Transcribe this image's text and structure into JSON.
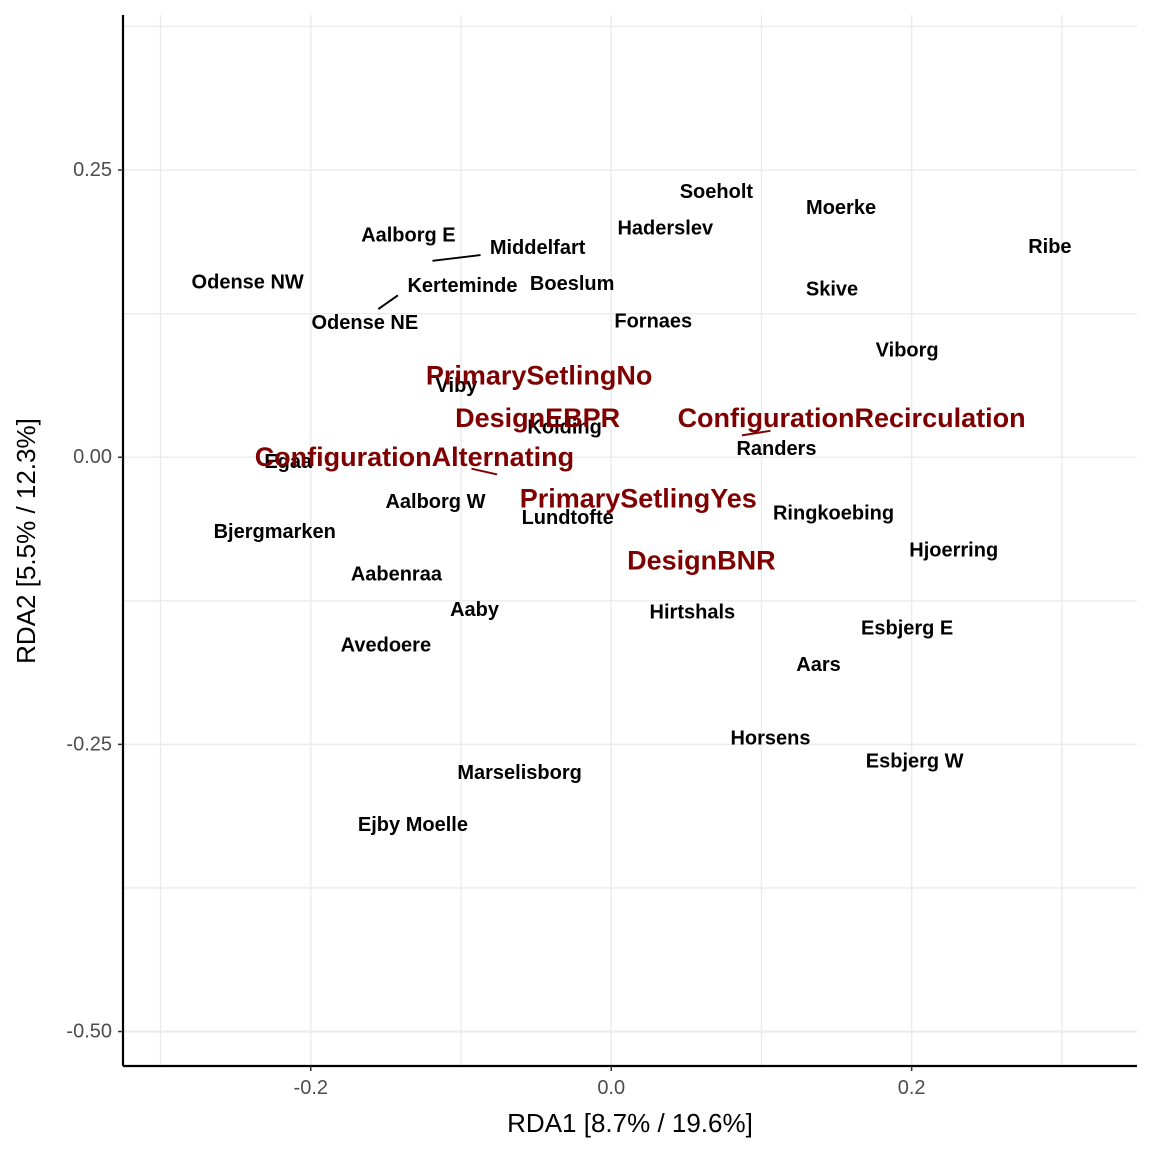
{
  "chart_data": {
    "type": "scatter",
    "xlabel": "RDA1 [8.7% / 19.6%]",
    "ylabel": "RDA2 [5.5% / 12.3%]",
    "xlim": [
      -0.325,
      0.35
    ],
    "ylim": [
      -0.53,
      0.385
    ],
    "xticks": [
      {
        "value": -0.2,
        "label": "-0.2"
      },
      {
        "value": 0.0,
        "label": "0.0"
      },
      {
        "value": 0.2,
        "label": "0.2"
      }
    ],
    "yticks": [
      {
        "value": -0.5,
        "label": "-0.50"
      },
      {
        "value": -0.25,
        "label": "-0.25"
      },
      {
        "value": 0.0,
        "label": "0.00"
      },
      {
        "value": 0.25,
        "label": "0.25"
      }
    ],
    "grid": true,
    "colors": {
      "sites": "#000000",
      "variables": "#7f0000",
      "grid": "#ebebeb",
      "axis": "#000000"
    },
    "sites": [
      {
        "name": "Soeholt",
        "x": 0.07,
        "y": 0.231
      },
      {
        "name": "Moerke",
        "x": 0.153,
        "y": 0.217
      },
      {
        "name": "Haderslev",
        "x": 0.036,
        "y": 0.199
      },
      {
        "name": "Aalborg E",
        "x": -0.135,
        "y": 0.193
      },
      {
        "name": "Ribe",
        "x": 0.292,
        "y": 0.183
      },
      {
        "name": "Middelfart",
        "x": -0.049,
        "y": 0.182
      },
      {
        "name": "Odense NW",
        "x": -0.242,
        "y": 0.152
      },
      {
        "name": "Kerteminde",
        "x": -0.099,
        "y": 0.149
      },
      {
        "name": "Boeslum",
        "x": -0.026,
        "y": 0.151
      },
      {
        "name": "Skive",
        "x": 0.147,
        "y": 0.146
      },
      {
        "name": "Odense NE",
        "x": -0.164,
        "y": 0.117
      },
      {
        "name": "Fornaes",
        "x": 0.028,
        "y": 0.118
      },
      {
        "name": "Viborg",
        "x": 0.197,
        "y": 0.093
      },
      {
        "name": "Viby",
        "x": -0.103,
        "y": 0.062
      },
      {
        "name": "Kolding",
        "x": -0.031,
        "y": 0.026
      },
      {
        "name": "Randers",
        "x": 0.11,
        "y": 0.007
      },
      {
        "name": "Egaa",
        "x": -0.215,
        "y": -0.004
      },
      {
        "name": "Aalborg W",
        "x": -0.117,
        "y": -0.039
      },
      {
        "name": "Ringkoebing",
        "x": 0.148,
        "y": -0.049
      },
      {
        "name": "Lundtofte",
        "x": -0.029,
        "y": -0.053
      },
      {
        "name": "Bjergmarken",
        "x": -0.224,
        "y": -0.065
      },
      {
        "name": "Hjoerring",
        "x": 0.228,
        "y": -0.081
      },
      {
        "name": "Aabenraa",
        "x": -0.143,
        "y": -0.102
      },
      {
        "name": "Aaby",
        "x": -0.091,
        "y": -0.133
      },
      {
        "name": "Hirtshals",
        "x": 0.054,
        "y": -0.135
      },
      {
        "name": "Esbjerg E",
        "x": 0.197,
        "y": -0.149
      },
      {
        "name": "Avedoere",
        "x": -0.15,
        "y": -0.164
      },
      {
        "name": "Aars",
        "x": 0.138,
        "y": -0.181
      },
      {
        "name": "Horsens",
        "x": 0.106,
        "y": -0.245
      },
      {
        "name": "Esbjerg W",
        "x": 0.202,
        "y": -0.265
      },
      {
        "name": "Marselisborg",
        "x": -0.061,
        "y": -0.275
      },
      {
        "name": "Ejby Moelle",
        "x": -0.132,
        "y": -0.32
      }
    ],
    "site_connectors": [
      {
        "from": [
          -0.119,
          0.171
        ],
        "to": [
          -0.087,
          0.176
        ]
      },
      {
        "from": [
          -0.155,
          0.129
        ],
        "to": [
          -0.142,
          0.141
        ]
      }
    ],
    "variables": [
      {
        "name": "PrimarySetlingNo",
        "x": -0.048,
        "y": 0.071
      },
      {
        "name": "DesignEBPR",
        "x": -0.049,
        "y": 0.034
      },
      {
        "name": "ConfigurationRecirculation",
        "x": 0.16,
        "y": 0.034
      },
      {
        "name": "ConfigurationAlternating",
        "x": -0.131,
        "y": 0.0
      },
      {
        "name": "PrimarySetlingYes",
        "x": 0.018,
        "y": -0.036
      },
      {
        "name": "DesignBNR",
        "x": 0.06,
        "y": -0.09
      }
    ],
    "variable_connectors": [
      {
        "from": [
          0.087,
          0.019
        ],
        "to": [
          0.106,
          0.023
        ]
      },
      {
        "from": [
          -0.093,
          -0.01
        ],
        "to": [
          -0.076,
          -0.015
        ]
      }
    ]
  }
}
